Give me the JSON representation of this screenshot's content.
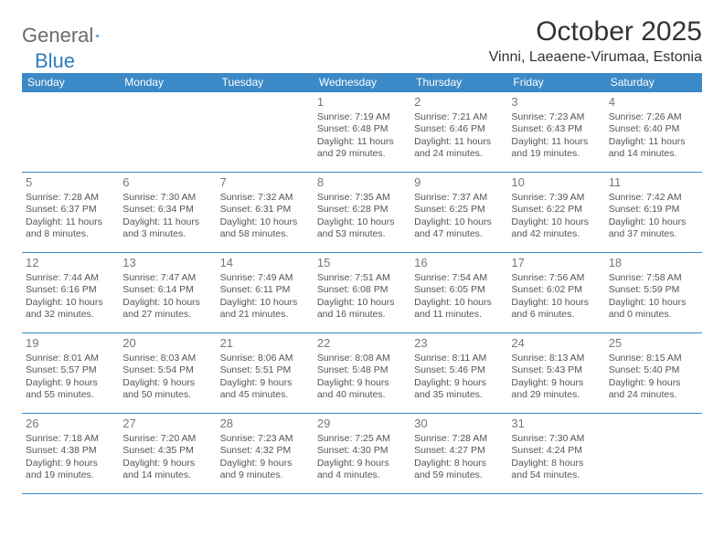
{
  "logo": {
    "text1": "General",
    "text2": "Blue"
  },
  "title": "October 2025",
  "location": "Vinni, Laeaene-Virumaa, Estonia",
  "header_bg": "#3b89c7",
  "border_color": "#3b89c7",
  "day_headers": [
    "Sunday",
    "Monday",
    "Tuesday",
    "Wednesday",
    "Thursday",
    "Friday",
    "Saturday"
  ],
  "weeks": [
    [
      null,
      null,
      null,
      {
        "num": "1",
        "sunrise": "Sunrise: 7:19 AM",
        "sunset": "Sunset: 6:48 PM",
        "day1": "Daylight: 11 hours",
        "day2": "and 29 minutes."
      },
      {
        "num": "2",
        "sunrise": "Sunrise: 7:21 AM",
        "sunset": "Sunset: 6:46 PM",
        "day1": "Daylight: 11 hours",
        "day2": "and 24 minutes."
      },
      {
        "num": "3",
        "sunrise": "Sunrise: 7:23 AM",
        "sunset": "Sunset: 6:43 PM",
        "day1": "Daylight: 11 hours",
        "day2": "and 19 minutes."
      },
      {
        "num": "4",
        "sunrise": "Sunrise: 7:26 AM",
        "sunset": "Sunset: 6:40 PM",
        "day1": "Daylight: 11 hours",
        "day2": "and 14 minutes."
      }
    ],
    [
      {
        "num": "5",
        "sunrise": "Sunrise: 7:28 AM",
        "sunset": "Sunset: 6:37 PM",
        "day1": "Daylight: 11 hours",
        "day2": "and 8 minutes."
      },
      {
        "num": "6",
        "sunrise": "Sunrise: 7:30 AM",
        "sunset": "Sunset: 6:34 PM",
        "day1": "Daylight: 11 hours",
        "day2": "and 3 minutes."
      },
      {
        "num": "7",
        "sunrise": "Sunrise: 7:32 AM",
        "sunset": "Sunset: 6:31 PM",
        "day1": "Daylight: 10 hours",
        "day2": "and 58 minutes."
      },
      {
        "num": "8",
        "sunrise": "Sunrise: 7:35 AM",
        "sunset": "Sunset: 6:28 PM",
        "day1": "Daylight: 10 hours",
        "day2": "and 53 minutes."
      },
      {
        "num": "9",
        "sunrise": "Sunrise: 7:37 AM",
        "sunset": "Sunset: 6:25 PM",
        "day1": "Daylight: 10 hours",
        "day2": "and 47 minutes."
      },
      {
        "num": "10",
        "sunrise": "Sunrise: 7:39 AM",
        "sunset": "Sunset: 6:22 PM",
        "day1": "Daylight: 10 hours",
        "day2": "and 42 minutes."
      },
      {
        "num": "11",
        "sunrise": "Sunrise: 7:42 AM",
        "sunset": "Sunset: 6:19 PM",
        "day1": "Daylight: 10 hours",
        "day2": "and 37 minutes."
      }
    ],
    [
      {
        "num": "12",
        "sunrise": "Sunrise: 7:44 AM",
        "sunset": "Sunset: 6:16 PM",
        "day1": "Daylight: 10 hours",
        "day2": "and 32 minutes."
      },
      {
        "num": "13",
        "sunrise": "Sunrise: 7:47 AM",
        "sunset": "Sunset: 6:14 PM",
        "day1": "Daylight: 10 hours",
        "day2": "and 27 minutes."
      },
      {
        "num": "14",
        "sunrise": "Sunrise: 7:49 AM",
        "sunset": "Sunset: 6:11 PM",
        "day1": "Daylight: 10 hours",
        "day2": "and 21 minutes."
      },
      {
        "num": "15",
        "sunrise": "Sunrise: 7:51 AM",
        "sunset": "Sunset: 6:08 PM",
        "day1": "Daylight: 10 hours",
        "day2": "and 16 minutes."
      },
      {
        "num": "16",
        "sunrise": "Sunrise: 7:54 AM",
        "sunset": "Sunset: 6:05 PM",
        "day1": "Daylight: 10 hours",
        "day2": "and 11 minutes."
      },
      {
        "num": "17",
        "sunrise": "Sunrise: 7:56 AM",
        "sunset": "Sunset: 6:02 PM",
        "day1": "Daylight: 10 hours",
        "day2": "and 6 minutes."
      },
      {
        "num": "18",
        "sunrise": "Sunrise: 7:58 AM",
        "sunset": "Sunset: 5:59 PM",
        "day1": "Daylight: 10 hours",
        "day2": "and 0 minutes."
      }
    ],
    [
      {
        "num": "19",
        "sunrise": "Sunrise: 8:01 AM",
        "sunset": "Sunset: 5:57 PM",
        "day1": "Daylight: 9 hours",
        "day2": "and 55 minutes."
      },
      {
        "num": "20",
        "sunrise": "Sunrise: 8:03 AM",
        "sunset": "Sunset: 5:54 PM",
        "day1": "Daylight: 9 hours",
        "day2": "and 50 minutes."
      },
      {
        "num": "21",
        "sunrise": "Sunrise: 8:06 AM",
        "sunset": "Sunset: 5:51 PM",
        "day1": "Daylight: 9 hours",
        "day2": "and 45 minutes."
      },
      {
        "num": "22",
        "sunrise": "Sunrise: 8:08 AM",
        "sunset": "Sunset: 5:48 PM",
        "day1": "Daylight: 9 hours",
        "day2": "and 40 minutes."
      },
      {
        "num": "23",
        "sunrise": "Sunrise: 8:11 AM",
        "sunset": "Sunset: 5:46 PM",
        "day1": "Daylight: 9 hours",
        "day2": "and 35 minutes."
      },
      {
        "num": "24",
        "sunrise": "Sunrise: 8:13 AM",
        "sunset": "Sunset: 5:43 PM",
        "day1": "Daylight: 9 hours",
        "day2": "and 29 minutes."
      },
      {
        "num": "25",
        "sunrise": "Sunrise: 8:15 AM",
        "sunset": "Sunset: 5:40 PM",
        "day1": "Daylight: 9 hours",
        "day2": "and 24 minutes."
      }
    ],
    [
      {
        "num": "26",
        "sunrise": "Sunrise: 7:18 AM",
        "sunset": "Sunset: 4:38 PM",
        "day1": "Daylight: 9 hours",
        "day2": "and 19 minutes."
      },
      {
        "num": "27",
        "sunrise": "Sunrise: 7:20 AM",
        "sunset": "Sunset: 4:35 PM",
        "day1": "Daylight: 9 hours",
        "day2": "and 14 minutes."
      },
      {
        "num": "28",
        "sunrise": "Sunrise: 7:23 AM",
        "sunset": "Sunset: 4:32 PM",
        "day1": "Daylight: 9 hours",
        "day2": "and 9 minutes."
      },
      {
        "num": "29",
        "sunrise": "Sunrise: 7:25 AM",
        "sunset": "Sunset: 4:30 PM",
        "day1": "Daylight: 9 hours",
        "day2": "and 4 minutes."
      },
      {
        "num": "30",
        "sunrise": "Sunrise: 7:28 AM",
        "sunset": "Sunset: 4:27 PM",
        "day1": "Daylight: 8 hours",
        "day2": "and 59 minutes."
      },
      {
        "num": "31",
        "sunrise": "Sunrise: 7:30 AM",
        "sunset": "Sunset: 4:24 PM",
        "day1": "Daylight: 8 hours",
        "day2": "and 54 minutes."
      },
      null
    ]
  ]
}
